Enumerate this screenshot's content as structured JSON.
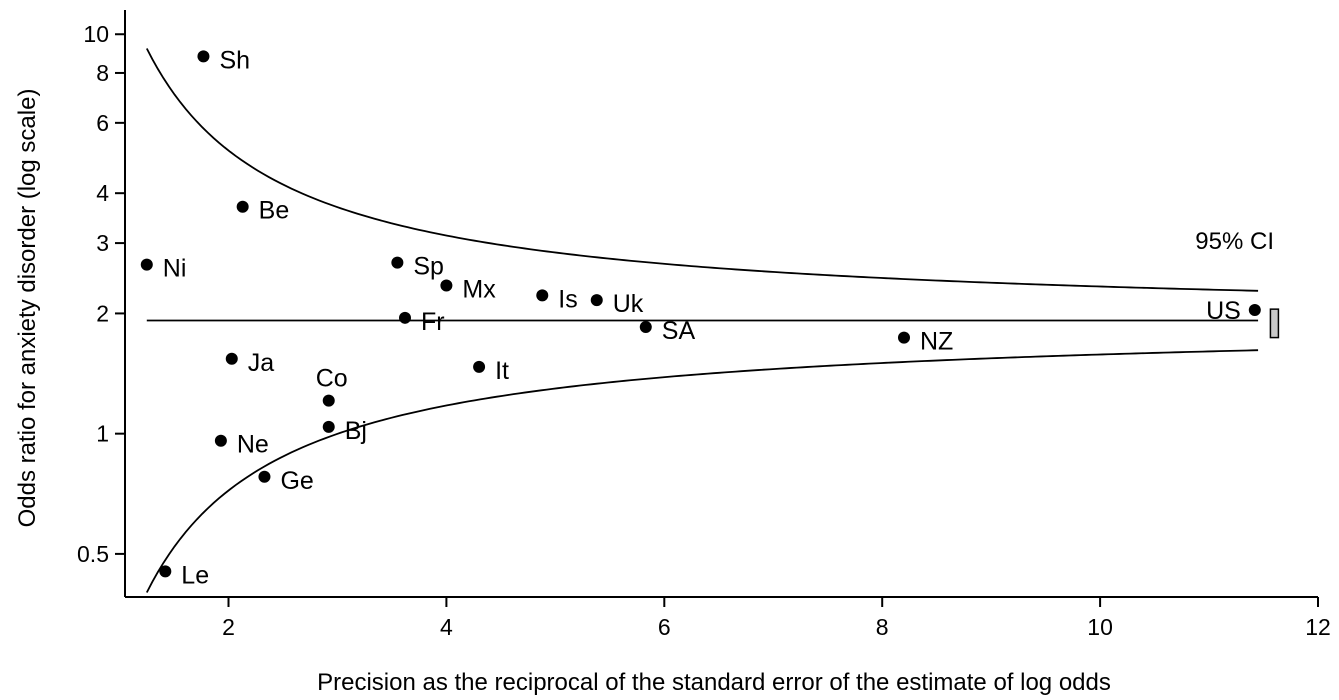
{
  "chart_data": {
    "type": "scatter",
    "xlabel": "Precision as the reciprocal of the standard error of the estimate of log odds",
    "ylabel": "Odds ratio for anxiety disorder (log scale)",
    "x_scale": "linear",
    "y_scale": "log",
    "xlim": [
      1.05,
      12.0
    ],
    "ylim": [
      0.39,
      11.5
    ],
    "x_ticks": [
      2,
      4,
      6,
      8,
      10,
      12
    ],
    "y_ticks": [
      0.5,
      1,
      2,
      3,
      4,
      6,
      8,
      10
    ],
    "grid": false,
    "legend": "none",
    "pooled_or": 1.92,
    "ci_label": "95% CI",
    "ci_bar": {
      "x": 11.6,
      "low": 1.74,
      "high": 2.05,
      "color": "#c8c8c8"
    },
    "funnel": {
      "z": 1.96,
      "x_start": 1.25,
      "x_end": 11.45
    },
    "points": [
      {
        "label": "Sh",
        "x": 1.77,
        "y": 8.8
      },
      {
        "label": "Be",
        "x": 2.13,
        "y": 3.7
      },
      {
        "label": "Ni",
        "x": 1.25,
        "y": 2.65
      },
      {
        "label": "Sp",
        "x": 3.55,
        "y": 2.68
      },
      {
        "label": "Mx",
        "x": 4.0,
        "y": 2.35
      },
      {
        "label": "Is",
        "x": 4.88,
        "y": 2.22
      },
      {
        "label": "Uk",
        "x": 5.38,
        "y": 2.16
      },
      {
        "label": "Fr",
        "x": 3.62,
        "y": 1.95
      },
      {
        "label": "SA",
        "x": 5.83,
        "y": 1.85
      },
      {
        "label": "NZ",
        "x": 8.2,
        "y": 1.74
      },
      {
        "label": "US",
        "x": 11.42,
        "y": 2.04
      },
      {
        "label": "Ja",
        "x": 2.03,
        "y": 1.54
      },
      {
        "label": "It",
        "x": 4.3,
        "y": 1.47
      },
      {
        "label": "Co",
        "x": 2.92,
        "y": 1.21
      },
      {
        "label": "Bj",
        "x": 2.92,
        "y": 1.04
      },
      {
        "label": "Ne",
        "x": 1.93,
        "y": 0.96
      },
      {
        "label": "Ge",
        "x": 2.33,
        "y": 0.78
      },
      {
        "label": "Le",
        "x": 1.42,
        "y": 0.452
      }
    ]
  }
}
